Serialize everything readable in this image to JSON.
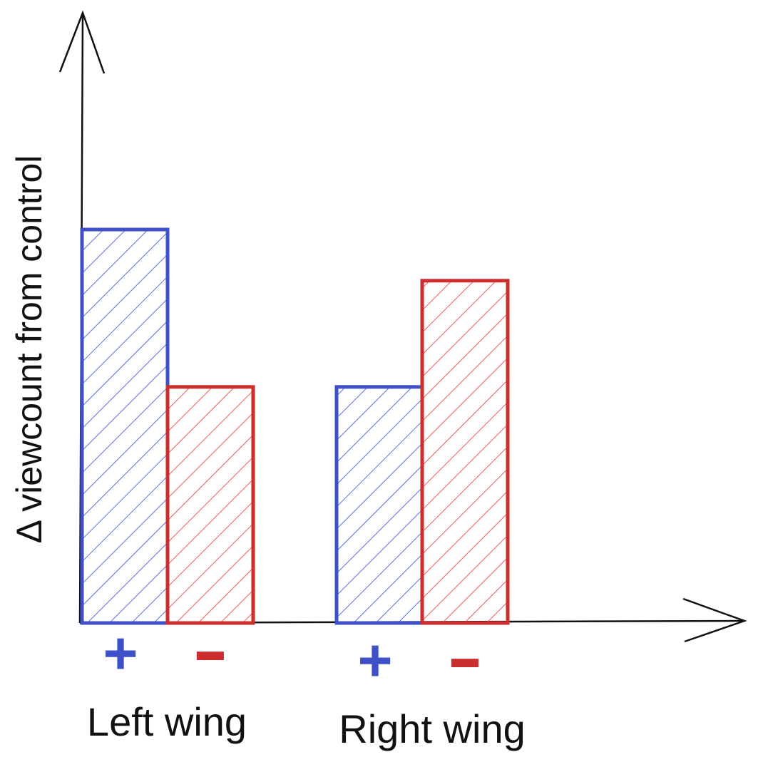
{
  "chart_data": {
    "type": "bar",
    "ylabel": "Δ viewcount from control",
    "xlabel": "",
    "title": "",
    "grid": false,
    "ylim": [
      0,
      100
    ],
    "categories": [
      "Left wing",
      "Right wing"
    ],
    "series": [
      {
        "sign_label": "+",
        "color": "#3f51c8",
        "values": [
          100,
          60
        ]
      },
      {
        "sign_label": "-",
        "color": "#cc2e2e",
        "values": [
          60,
          87
        ]
      }
    ],
    "pattern": "diagonal-hatch"
  }
}
